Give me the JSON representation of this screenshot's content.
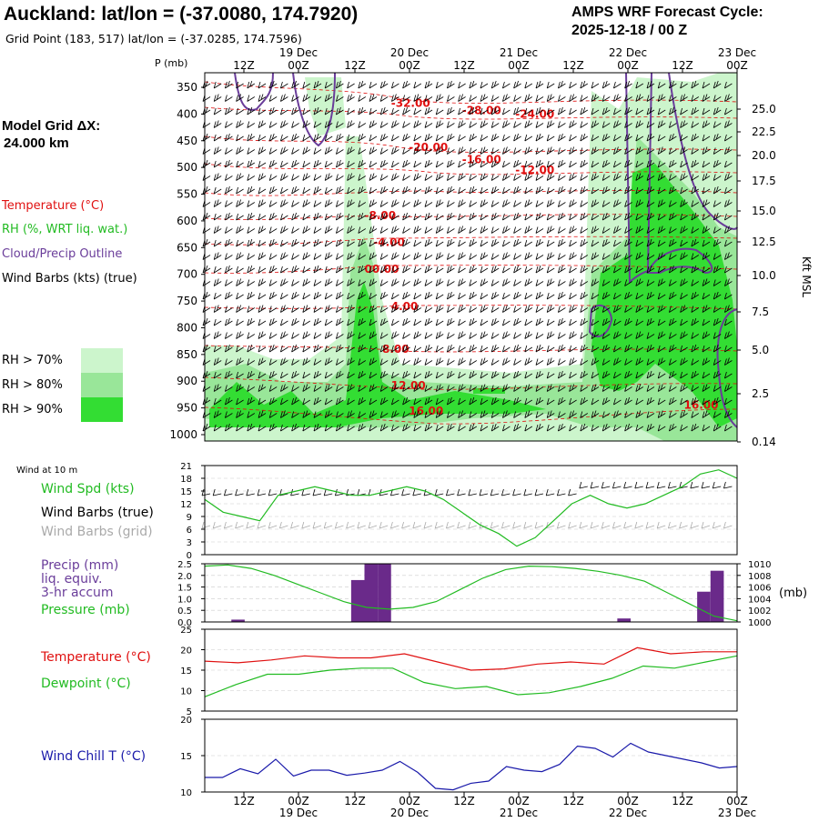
{
  "header": {
    "title": "Auckland:  lat/lon = (-37.0080, 174.7920)",
    "subtitle": "Grid Point (183, 517) lat/lon = (-37.0285, 174.7596)",
    "cycle_label": "AMPS WRF Forecast Cycle:",
    "cycle_value": "2025-12-18 / 00  Z"
  },
  "legend": {
    "model_grid": "Model Grid ΔX:",
    "model_grid_value": "24.000 km",
    "temperature": "Temperature (°C)",
    "rh": "RH (%, WRT liq. wat.)",
    "cloud": "Cloud/Precip Outline",
    "wind": "Wind Barbs (kts) (true)",
    "rh70": "RH > 70%",
    "rh80": "RH > 80%",
    "rh90": "RH > 90%"
  },
  "colors": {
    "temperature": "#e01010",
    "rh": "#22bb22",
    "cloud": "#6a3d9a",
    "rh70": "#ccf5cc",
    "rh80": "#99e699",
    "rh90": "#33dd33",
    "windchill": "#1a1aaa",
    "precip_bar": "#6a2a8a"
  },
  "time_axis": {
    "tick_labels": [
      "12Z",
      "00Z",
      "12Z",
      "00Z",
      "12Z",
      "00Z",
      "12Z",
      "00Z",
      "12Z",
      "00Z"
    ],
    "date_labels": [
      "19 Dec",
      "20 Dec",
      "21 Dec",
      "22 Dec",
      "23 Dec"
    ]
  },
  "chart_data": [
    {
      "type": "heatmap",
      "ylabel": "P (mb)",
      "y2label": "Kft MSL",
      "pressure_ticks": [
        "350",
        "400",
        "450",
        "500",
        "550",
        "600",
        "650",
        "700",
        "750",
        "800",
        "850",
        "900",
        "950",
        "1000"
      ],
      "height_ticks": [
        "25.0",
        "22.5",
        "20.0",
        "17.5",
        "15.0",
        "12.5",
        "10.0",
        "7.5",
        "5.0",
        "2.5",
        "0.14"
      ],
      "temperature_labels": [
        {
          "text": "-32.00",
          "t": 21,
          "p": 380
        },
        {
          "text": "-28.00",
          "t": 29,
          "p": 393
        },
        {
          "text": "-24.00",
          "t": 35,
          "p": 400
        },
        {
          "text": "-20.00",
          "t": 23,
          "p": 462
        },
        {
          "text": "-16.00",
          "t": 29,
          "p": 485
        },
        {
          "text": "-12.00",
          "t": 35,
          "p": 505
        },
        {
          "text": "-8.00",
          "t": 18,
          "p": 590
        },
        {
          "text": "-4.00",
          "t": 19,
          "p": 640
        },
        {
          "text": "00.00",
          "t": 18,
          "p": 690
        },
        {
          "text": "4.00",
          "t": 21,
          "p": 760
        },
        {
          "text": "8.00",
          "t": 20,
          "p": 840
        },
        {
          "text": "12.00",
          "t": 21,
          "p": 908
        },
        {
          "text": "16.00",
          "t": 23,
          "p": 956
        },
        {
          "text": "16.00",
          "t": 54,
          "p": 945
        }
      ]
    },
    {
      "type": "line",
      "title_lines": [
        "Wind Spd (kts)",
        "Wind Barbs (true)",
        "Wind Barbs (grid)"
      ],
      "corner_label": "Wind at 10 m",
      "y_ticks": [
        "0",
        "3",
        "6",
        "9",
        "12",
        "15",
        "18",
        "21"
      ],
      "ylim": [
        0,
        21
      ],
      "series": [
        {
          "name": "Wind Spd (kts)",
          "values": [
            13,
            10,
            9,
            8,
            14,
            15,
            16,
            15,
            14,
            14,
            15,
            16,
            15,
            13,
            10,
            7,
            5,
            2,
            4,
            8,
            12,
            14,
            12,
            11,
            12,
            14,
            16,
            19,
            20,
            18
          ]
        }
      ]
    },
    {
      "type": "bar",
      "title_lines": [
        "Precip (mm)",
        "liq. equiv.",
        "3-hr accum",
        "Pressure (mb)"
      ],
      "y_ticks": [
        "0.0",
        "0.5",
        "1.0",
        "1.5",
        "2.0",
        "2.5"
      ],
      "y2_ticks": [
        "1000",
        "1002",
        "1004",
        "1006",
        "1008",
        "1010"
      ],
      "y2label": "(mb)",
      "ylim": [
        0,
        2.5
      ],
      "y2lim": [
        1000,
        1010
      ],
      "precip": [
        0,
        0,
        0.1,
        0,
        0,
        0,
        0,
        0,
        0,
        0,
        0,
        1.8,
        2.6,
        2.6,
        0,
        0,
        0,
        0,
        0,
        0,
        0,
        0,
        0,
        0,
        0,
        0,
        0,
        0,
        0,
        0,
        0,
        0.15,
        0,
        0,
        0,
        0,
        0,
        1.3,
        2.2,
        0
      ],
      "series": [
        {
          "name": "Pressure (mb)",
          "values": [
            1009.6,
            1009.8,
            1009.2,
            1008,
            1006.5,
            1005,
            1003.5,
            1002.5,
            1002.2,
            1002.5,
            1003.5,
            1005.5,
            1007.5,
            1009,
            1009.6,
            1009.5,
            1009.2,
            1008.7,
            1008,
            1007,
            1005,
            1003,
            1001,
            1000.2
          ]
        }
      ]
    },
    {
      "type": "line",
      "y_ticks": [
        "5",
        "10",
        "15",
        "20",
        "25"
      ],
      "ylim": [
        5,
        25
      ],
      "series": [
        {
          "name": "Temperature (°C)",
          "values": [
            17.2,
            16.8,
            17.5,
            18.5,
            18,
            18,
            19,
            17,
            15,
            15.3,
            16.5,
            17,
            16.5,
            20.5,
            19,
            19.5,
            19.5
          ]
        },
        {
          "name": "Dewpoint (°C)",
          "values": [
            8.5,
            11.5,
            14,
            14,
            15,
            15.5,
            15.5,
            12,
            10.5,
            11,
            9,
            9.5,
            11,
            13,
            16,
            15.5,
            17,
            18.5
          ]
        }
      ]
    },
    {
      "type": "line",
      "y_ticks": [
        "10",
        "15",
        "20"
      ],
      "ylim": [
        10,
        20
      ],
      "series": [
        {
          "name": "Wind Chill T (°C)",
          "values": [
            12,
            12,
            13.2,
            12.5,
            14.5,
            12.2,
            13,
            13,
            12.3,
            12.6,
            13,
            14.2,
            12.7,
            10.5,
            10.3,
            11.2,
            11.5,
            13.5,
            13,
            12.8,
            13.8,
            16.3,
            16,
            14.8,
            16.7,
            15.5,
            15,
            14.5,
            14,
            13.3,
            13.5
          ]
        }
      ]
    }
  ]
}
